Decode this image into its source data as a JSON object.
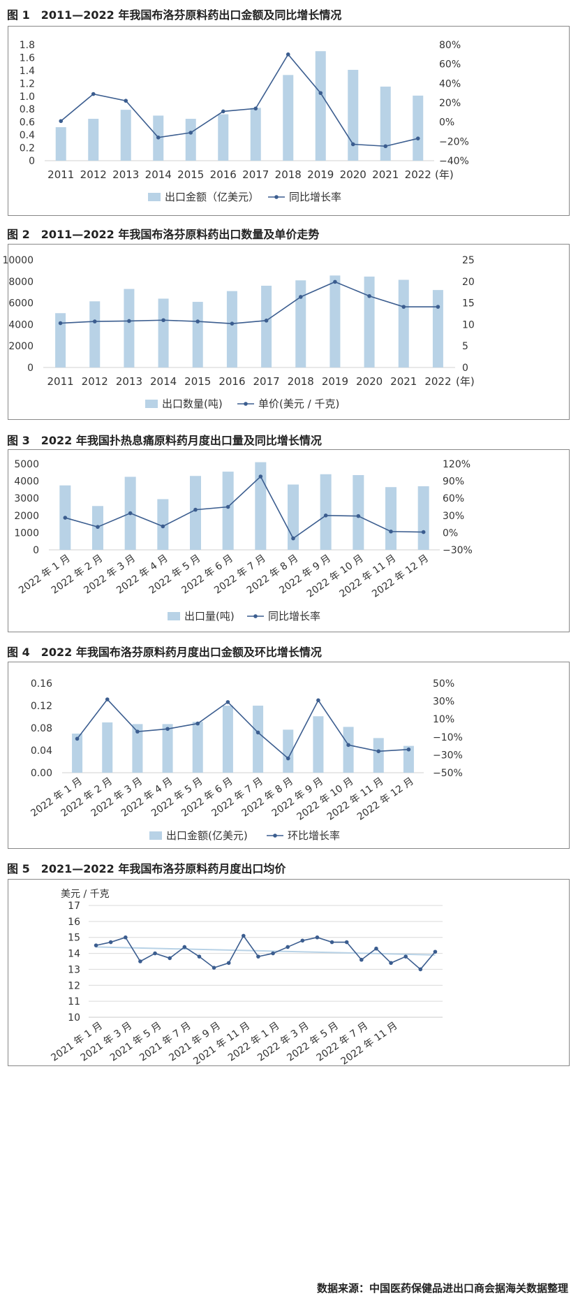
{
  "colors": {
    "bar": "#b8d2e6",
    "line": "#3b5d8f",
    "trend": "#b8d2e6",
    "grid": "#d9d9d9",
    "border": "#888888"
  },
  "figures": [
    {
      "num": "图 1",
      "title": "2011—2022 年我国布洛芬原料药出口金额及同比增长情况"
    },
    {
      "num": "图 2",
      "title": "2011—2022 年我国布洛芬原料药出口数量及单价走势"
    },
    {
      "num": "图 3",
      "title": "2022 年我国扑热息痛原料药月度出口量及同比增长情况"
    },
    {
      "num": "图 4",
      "title": "2022 年我国布洛芬原料药月度出口金额及环比增长情况"
    },
    {
      "num": "图 5",
      "title": "2021—2022 年我国布洛芬原料药月度出口均价"
    }
  ],
  "source": "数据来源：中国医药保健品进出口商会据海关数据整理",
  "chart_data": [
    {
      "type": "bar",
      "categories": [
        "2011",
        "2012",
        "2013",
        "2014",
        "2015",
        "2016",
        "2017",
        "2018",
        "2019",
        "2020",
        "2021",
        "2022"
      ],
      "x_unit": "(年)",
      "series": [
        {
          "name": "出口金额（亿美元）",
          "type": "bar",
          "axis": "left",
          "values": [
            0.52,
            0.65,
            0.79,
            0.7,
            0.65,
            0.72,
            0.82,
            1.33,
            1.7,
            1.41,
            1.15,
            1.01
          ]
        },
        {
          "name": "同比增长率",
          "type": "line",
          "axis": "right",
          "values": [
            0.01,
            0.29,
            0.22,
            -0.16,
            -0.11,
            0.11,
            0.14,
            0.7,
            0.3,
            -0.23,
            -0.25,
            -0.17
          ]
        }
      ],
      "left_axis": {
        "ylim": [
          0,
          1.8
        ],
        "ticks": [
          "0",
          "0.2",
          "0.4",
          "0.6",
          "0.8",
          "1.0",
          "1.2",
          "1.4",
          "1.6",
          "1.8"
        ]
      },
      "right_axis": {
        "ylim": [
          -0.4,
          0.8
        ],
        "ticks": [
          "−40%",
          "−20%",
          "0%",
          "20%",
          "40%",
          "60%",
          "80%"
        ]
      },
      "legend": "bottom",
      "grid": false
    },
    {
      "type": "bar",
      "categories": [
        "2011",
        "2012",
        "2013",
        "2014",
        "2015",
        "2016",
        "2017",
        "2018",
        "2019",
        "2020",
        "2021",
        "2022"
      ],
      "x_unit": "(年)",
      "series": [
        {
          "name": "出口数量(吨)",
          "type": "bar",
          "axis": "left",
          "values": [
            5050,
            6150,
            7300,
            6400,
            6100,
            7100,
            7600,
            8100,
            8550,
            8450,
            8150,
            7200
          ]
        },
        {
          "name": "单价(美元 / 千克)",
          "type": "line",
          "axis": "right",
          "values": [
            10.3,
            10.7,
            10.8,
            11.0,
            10.7,
            10.2,
            10.9,
            16.4,
            19.9,
            16.6,
            14.1,
            14.1
          ]
        }
      ],
      "left_axis": {
        "ylim": [
          0,
          10000
        ],
        "ticks": [
          "0",
          "2000",
          "4000",
          "6000",
          "8000",
          "10000"
        ]
      },
      "right_axis": {
        "ylim": [
          0,
          25
        ],
        "ticks": [
          "0",
          "5",
          "10",
          "15",
          "20",
          "25"
        ]
      },
      "legend": "bottom",
      "grid": false
    },
    {
      "type": "bar",
      "categories": [
        "2022 年 1 月",
        "2022 年 2 月",
        "2022 年 3 月",
        "2022 年 4 月",
        "2022 年 5 月",
        "2022 年 6 月",
        "2022 年 7 月",
        "2022 年 8 月",
        "2022 年 9 月",
        "2022 年 10 月",
        "2022 年 11 月",
        "2022 年 12 月"
      ],
      "series": [
        {
          "name": "出口量(吨)",
          "type": "bar",
          "axis": "left",
          "values": [
            3750,
            2550,
            4250,
            2950,
            4300,
            4550,
            5100,
            3800,
            4400,
            4350,
            3650,
            3700
          ]
        },
        {
          "name": "同比增长率",
          "type": "line",
          "axis": "right",
          "values": [
            0.26,
            0.1,
            0.34,
            0.11,
            0.4,
            0.45,
            0.98,
            -0.1,
            0.3,
            0.29,
            0.02,
            0.01
          ]
        }
      ],
      "left_axis": {
        "ylim": [
          0,
          5000
        ],
        "ticks": [
          "0",
          "1000",
          "2000",
          "3000",
          "4000",
          "5000"
        ]
      },
      "right_axis": {
        "ylim": [
          -0.3,
          1.2
        ],
        "ticks": [
          "−30%",
          "0%",
          "30%",
          "60%",
          "90%",
          "120%"
        ]
      },
      "legend": "bottom",
      "grid": false
    },
    {
      "type": "bar",
      "categories": [
        "2022 年 1 月",
        "2022 年 2 月",
        "2022 年 3 月",
        "2022 年 4 月",
        "2022 年 5 月",
        "2022 年 6 月",
        "2022 年 7 月",
        "2022 年 8 月",
        "2022 年 9 月",
        "2022 年 10 月",
        "2022 年 11 月",
        "2022 年 12 月"
      ],
      "series": [
        {
          "name": "出口金额(亿美元)",
          "type": "bar",
          "axis": "left",
          "values": [
            0.07,
            0.09,
            0.087,
            0.087,
            0.091,
            0.12,
            0.12,
            0.077,
            0.101,
            0.082,
            0.062,
            0.048
          ]
        },
        {
          "name": "环比增长率",
          "type": "line",
          "axis": "right",
          "values": [
            -0.12,
            0.32,
            -0.04,
            -0.01,
            0.05,
            0.29,
            -0.05,
            -0.34,
            0.31,
            -0.19,
            -0.26,
            -0.24
          ]
        }
      ],
      "left_axis": {
        "ylim": [
          0,
          0.16
        ],
        "ticks": [
          "0.00",
          "0.04",
          "0.08",
          "0.12",
          "0.16"
        ]
      },
      "right_axis": {
        "ylim": [
          -0.5,
          0.5
        ],
        "ticks": [
          "−50%",
          "−30%",
          "−10%",
          "10%",
          "30%",
          "50%"
        ]
      },
      "legend": "bottom",
      "grid": false
    },
    {
      "type": "line",
      "ylabel": "美元 / 千克",
      "x": [
        "2021 年 1 月",
        "2021 年 2 月",
        "2021 年 3 月",
        "2021 年 4 月",
        "2021 年 5 月",
        "2021 年 6 月",
        "2021 年 7 月",
        "2021 年 8 月",
        "2021 年 9 月",
        "2021 年 10 月",
        "2021 年 11 月",
        "2021 年 12 月",
        "2022 年 1 月",
        "2022 年 2 月",
        "2022 年 3 月",
        "2022 年 4 月",
        "2022 年 5 月",
        "2022 年 6 月",
        "2022 年 7 月",
        "2022 年 8 月",
        "2022 年 9 月",
        "2022 年 10 月",
        "2022 年 11 月",
        "2022 年 12 月"
      ],
      "x_tick_labels": [
        "2021 年 1 月",
        "2021 年 3 月",
        "2021 年 5 月",
        "2021 年 7 月",
        "2021 年 9 月",
        "2021 年 11 月",
        "2022 年 1 月",
        "2022 年 3 月",
        "2022 年 5 月",
        "2022 年 7 月",
        "2022 年 11 月"
      ],
      "series": [
        {
          "type": "line",
          "values": [
            14.5,
            14.7,
            15.0,
            13.5,
            14.0,
            13.7,
            14.4,
            13.8,
            13.1,
            13.4,
            15.1,
            13.8,
            14.0,
            14.4,
            14.8,
            15.0,
            14.7,
            14.7,
            13.6,
            14.3,
            13.4,
            13.8,
            13.0,
            14.1
          ]
        }
      ],
      "trendline": [
        14.4,
        13.9
      ],
      "ylim": [
        10,
        17
      ],
      "ticks": [
        "10",
        "11",
        "12",
        "13",
        "14",
        "15",
        "16",
        "17"
      ],
      "grid": true
    }
  ]
}
